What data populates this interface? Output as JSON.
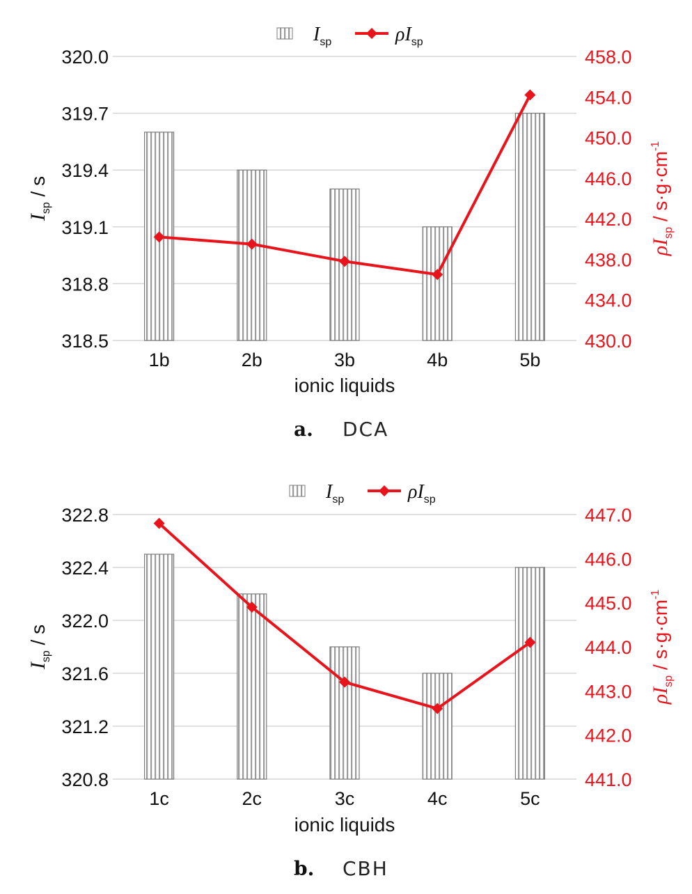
{
  "colors": {
    "bar_stroke": "#7a7a7a",
    "bar_stripe": "#9a9a9a",
    "line": "#e8141c",
    "right_axis_text": "#e8141c",
    "grid": "#d6d6d6"
  },
  "chart_data": [
    {
      "type": "bar",
      "caption_letter": "a.",
      "caption_text": "DCA",
      "xlabel": "ionic liquids",
      "ylabel_left_main": "I",
      "ylabel_left_sub": "sp",
      "ylabel_left_unit": " / s",
      "ylabel_right_main": "ρI",
      "ylabel_right_sub": "sp",
      "ylabel_right_unit": " / s·g·cm",
      "ylabel_right_sup": "-1",
      "legend": {
        "bar": "I",
        "bar_sub": "sp",
        "line": "ρI",
        "line_sub": "sp",
        "placement": "top-center"
      },
      "categories": [
        "1b",
        "2b",
        "3b",
        "4b",
        "5b"
      ],
      "series": [
        {
          "name": "Isp",
          "type": "bar",
          "axis": "left",
          "values": [
            319.6,
            319.4,
            319.3,
            319.1,
            319.7
          ]
        },
        {
          "name": "ρIsp",
          "type": "line",
          "axis": "right",
          "values": [
            440.2,
            439.5,
            437.8,
            436.5,
            454.2
          ]
        }
      ],
      "ylim_left": [
        318.5,
        320.0
      ],
      "yticks_left": [
        "318.5",
        "318.8",
        "319.1",
        "319.4",
        "319.7",
        "320.0"
      ],
      "ylim_right": [
        430.0,
        458.0
      ],
      "yticks_right": [
        "430.0",
        "434.0",
        "438.0",
        "442.0",
        "446.0",
        "450.0",
        "454.0",
        "458.0"
      ],
      "grid": true
    },
    {
      "type": "bar",
      "caption_letter": "b.",
      "caption_text": "CBH",
      "xlabel": "ionic liquids",
      "ylabel_left_main": "I",
      "ylabel_left_sub": "sp",
      "ylabel_left_unit": " / s",
      "ylabel_right_main": "ρI",
      "ylabel_right_sub": "sp",
      "ylabel_right_unit": " / s·g·cm",
      "ylabel_right_sup": "-1",
      "legend": {
        "bar": "I",
        "bar_sub": "sp",
        "line": "ρI",
        "line_sub": "sp",
        "placement": "top-center"
      },
      "categories": [
        "1c",
        "2c",
        "3c",
        "4c",
        "5c"
      ],
      "series": [
        {
          "name": "Isp",
          "type": "bar",
          "axis": "left",
          "values": [
            322.5,
            322.2,
            321.8,
            321.6,
            322.4
          ]
        },
        {
          "name": "ρIsp",
          "type": "line",
          "axis": "right",
          "values": [
            446.8,
            444.9,
            443.2,
            442.6,
            444.1
          ]
        }
      ],
      "ylim_left": [
        320.8,
        322.8
      ],
      "yticks_left": [
        "320.8",
        "321.2",
        "321.6",
        "322.0",
        "322.4",
        "322.8"
      ],
      "ylim_right": [
        441.0,
        447.0
      ],
      "yticks_right": [
        "441.0",
        "442.0",
        "443.0",
        "444.0",
        "445.0",
        "446.0",
        "447.0"
      ],
      "grid": true
    }
  ]
}
